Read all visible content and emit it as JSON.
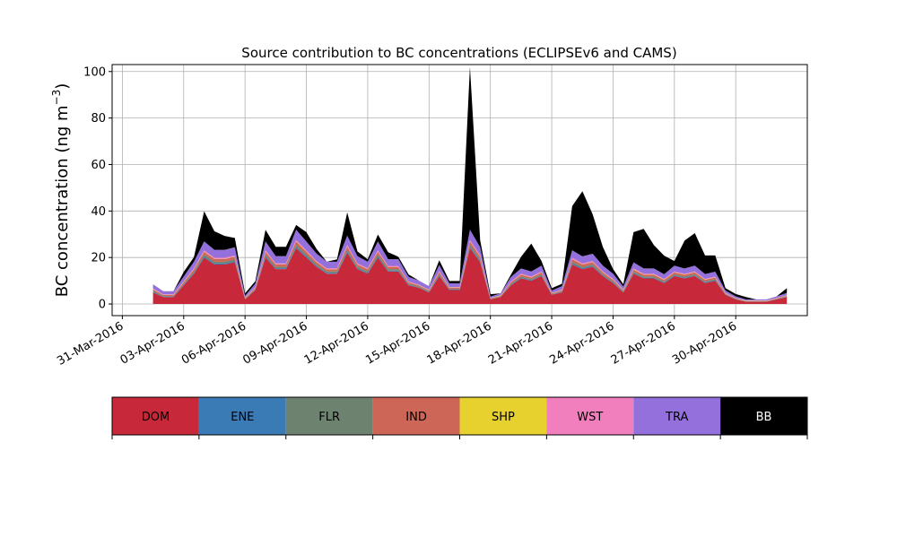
{
  "chart_data": {
    "type": "area",
    "stacked": true,
    "title": "Source contribution to BC concentrations (ECLIPSEv6 and CAMS)",
    "ylabel_prefix": "BC concentration (ng m",
    "ylabel_exp": "−3",
    "ylabel_suffix": ")",
    "xlabel": "",
    "ylim": [
      -5,
      103
    ],
    "xlim": [
      "2016-03-30T12:00",
      "2016-05-03T12:00"
    ],
    "yticks": [
      0,
      20,
      40,
      60,
      80,
      100
    ],
    "yticks_labels": [
      "0",
      "20",
      "40",
      "60",
      "80",
      "100"
    ],
    "xticks": [
      "2016-03-31",
      "2016-04-03",
      "2016-04-06",
      "2016-04-09",
      "2016-04-12",
      "2016-04-15",
      "2016-04-18",
      "2016-04-21",
      "2016-04-24",
      "2016-04-27",
      "2016-04-30"
    ],
    "xtick_labels": [
      "31-Mar-2016",
      "03-Apr-2016",
      "06-Apr-2016",
      "09-Apr-2016",
      "12-Apr-2016",
      "15-Apr-2016",
      "18-Apr-2016",
      "21-Apr-2016",
      "24-Apr-2016",
      "27-Apr-2016",
      "30-Apr-2016"
    ],
    "grid": true,
    "legend_position": "bottom",
    "legend": [
      {
        "name": "DOM",
        "color": "#c7283a",
        "text_color": "#000000"
      },
      {
        "name": "ENE",
        "color": "#3a7bb5",
        "text_color": "#000000"
      },
      {
        "name": "FLR",
        "color": "#6e8270",
        "text_color": "#000000"
      },
      {
        "name": "IND",
        "color": "#cd6657",
        "text_color": "#000000"
      },
      {
        "name": "SHP",
        "color": "#e6d12f",
        "text_color": "#000000"
      },
      {
        "name": "WST",
        "color": "#f27fbd",
        "text_color": "#000000"
      },
      {
        "name": "TRA",
        "color": "#9370db",
        "text_color": "#000000"
      },
      {
        "name": "BB",
        "color": "#000000",
        "text_color": "#ffffff"
      }
    ],
    "x": [
      "2016-04-01T12:00",
      "2016-04-02T00:00",
      "2016-04-02T12:00",
      "2016-04-03T00:00",
      "2016-04-03T12:00",
      "2016-04-04T00:00",
      "2016-04-04T12:00",
      "2016-04-05T00:00",
      "2016-04-05T12:00",
      "2016-04-06T00:00",
      "2016-04-06T12:00",
      "2016-04-07T00:00",
      "2016-04-07T12:00",
      "2016-04-08T00:00",
      "2016-04-08T12:00",
      "2016-04-09T00:00",
      "2016-04-09T12:00",
      "2016-04-10T00:00",
      "2016-04-10T12:00",
      "2016-04-11T00:00",
      "2016-04-11T12:00",
      "2016-04-12T00:00",
      "2016-04-12T12:00",
      "2016-04-13T00:00",
      "2016-04-13T12:00",
      "2016-04-14T00:00",
      "2016-04-14T12:00",
      "2016-04-15T00:00",
      "2016-04-15T12:00",
      "2016-04-16T00:00",
      "2016-04-16T12:00",
      "2016-04-17T00:00",
      "2016-04-17T12:00",
      "2016-04-18T00:00",
      "2016-04-18T12:00",
      "2016-04-19T00:00",
      "2016-04-19T12:00",
      "2016-04-20T00:00",
      "2016-04-20T12:00",
      "2016-04-21T00:00",
      "2016-04-21T12:00",
      "2016-04-22T00:00",
      "2016-04-22T12:00",
      "2016-04-23T00:00",
      "2016-04-23T12:00",
      "2016-04-24T00:00",
      "2016-04-24T12:00",
      "2016-04-25T00:00",
      "2016-04-25T12:00",
      "2016-04-26T00:00",
      "2016-04-26T12:00",
      "2016-04-27T00:00",
      "2016-04-27T12:00",
      "2016-04-28T00:00",
      "2016-04-28T12:00",
      "2016-04-29T00:00",
      "2016-04-29T12:00",
      "2016-04-30T00:00",
      "2016-04-30T12:00",
      "2016-05-01T00:00",
      "2016-05-01T12:00",
      "2016-05-02T00:00",
      "2016-05-02T12:00"
    ],
    "series": [
      {
        "name": "DOM",
        "values": [
          5,
          3,
          3,
          8,
          13,
          20,
          17,
          17,
          18,
          2,
          6,
          20,
          15,
          15,
          24,
          20,
          16,
          13,
          13,
          22,
          15,
          13,
          20,
          14,
          14,
          8,
          7,
          5,
          12,
          6,
          6,
          24,
          18,
          2,
          3,
          8,
          11,
          10,
          12,
          4,
          5,
          17,
          15,
          16,
          12,
          9,
          5,
          13,
          11,
          11,
          9,
          12,
          11,
          12,
          9,
          10,
          4,
          2,
          1,
          1,
          1,
          2,
          3
        ]
      },
      {
        "name": "ENE",
        "values": [
          0.3,
          0.2,
          0.2,
          0.3,
          0.4,
          0.5,
          0.5,
          0.5,
          0.5,
          0.1,
          0.2,
          0.5,
          0.4,
          0.4,
          0.6,
          0.5,
          0.4,
          0.4,
          0.4,
          0.6,
          0.4,
          0.4,
          0.5,
          0.4,
          0.4,
          0.3,
          0.2,
          0.2,
          0.4,
          0.2,
          0.2,
          0.6,
          0.5,
          0.1,
          0.1,
          0.3,
          0.3,
          0.3,
          0.3,
          0.1,
          0.2,
          0.5,
          0.4,
          0.4,
          0.3,
          0.3,
          0.2,
          0.4,
          0.3,
          0.3,
          0.3,
          0.3,
          0.3,
          0.3,
          0.3,
          0.3,
          0.1,
          0.1,
          0.1,
          0.1,
          0.1,
          0.1,
          0.1
        ]
      },
      {
        "name": "FLR",
        "values": [
          0.4,
          0.3,
          0.3,
          0.4,
          0.6,
          0.8,
          0.7,
          0.7,
          0.7,
          0.2,
          0.3,
          0.8,
          0.6,
          0.6,
          0.9,
          0.8,
          0.6,
          0.6,
          0.6,
          0.8,
          0.6,
          0.6,
          0.8,
          0.6,
          0.6,
          0.4,
          0.3,
          0.3,
          0.5,
          0.3,
          0.3,
          0.9,
          0.7,
          0.1,
          0.2,
          0.4,
          0.5,
          0.4,
          0.5,
          0.2,
          0.3,
          0.7,
          0.6,
          0.6,
          0.5,
          0.4,
          0.3,
          0.5,
          0.5,
          0.5,
          0.4,
          0.5,
          0.5,
          0.5,
          0.4,
          0.4,
          0.2,
          0.1,
          0.1,
          0.1,
          0.1,
          0.1,
          0.2
        ]
      },
      {
        "name": "IND",
        "values": [
          0.6,
          0.4,
          0.4,
          0.7,
          0.9,
          1.2,
          1.1,
          1.1,
          1.1,
          0.2,
          0.5,
          1.2,
          1.0,
          1.0,
          1.4,
          1.2,
          1.0,
          0.9,
          0.9,
          1.3,
          1.0,
          0.9,
          1.2,
          0.9,
          0.9,
          0.6,
          0.5,
          0.4,
          0.8,
          0.5,
          0.5,
          1.4,
          1.1,
          0.2,
          0.3,
          0.6,
          0.8,
          0.7,
          0.8,
          0.3,
          0.4,
          1.1,
          1.0,
          1.0,
          0.8,
          0.7,
          0.4,
          0.9,
          0.8,
          0.8,
          0.7,
          0.8,
          0.8,
          0.8,
          0.7,
          0.7,
          0.3,
          0.2,
          0.1,
          0.1,
          0.1,
          0.2,
          0.3
        ]
      },
      {
        "name": "SHP",
        "values": [
          0.1,
          0.1,
          0.1,
          0.1,
          0.1,
          0.1,
          0.1,
          0.1,
          0.1,
          0.1,
          0.1,
          0.1,
          0.1,
          0.1,
          0.1,
          0.1,
          0.1,
          0.1,
          0.1,
          0.1,
          0.1,
          0.1,
          0.1,
          0.1,
          0.1,
          0.1,
          0.1,
          0.1,
          0.1,
          0.1,
          0.1,
          0.1,
          0.1,
          0.1,
          0.1,
          0.1,
          0.1,
          0.1,
          0.1,
          0.1,
          0.1,
          0.1,
          0.1,
          0.1,
          0.1,
          0.1,
          0.1,
          0.1,
          0.1,
          0.1,
          0.1,
          0.1,
          0.1,
          0.1,
          0.1,
          0.1,
          0.1,
          0.1,
          0.1,
          0.1,
          0.1,
          0.1,
          0.1
        ]
      },
      {
        "name": "WST",
        "values": [
          0.3,
          0.2,
          0.2,
          0.3,
          0.4,
          0.5,
          0.5,
          0.5,
          0.5,
          0.1,
          0.2,
          0.5,
          0.4,
          0.4,
          0.6,
          0.5,
          0.4,
          0.4,
          0.4,
          0.6,
          0.4,
          0.4,
          0.5,
          0.4,
          0.4,
          0.3,
          0.2,
          0.2,
          0.4,
          0.2,
          0.2,
          0.6,
          0.5,
          0.1,
          0.1,
          0.3,
          0.3,
          0.3,
          0.3,
          0.1,
          0.2,
          0.5,
          0.4,
          0.4,
          0.3,
          0.3,
          0.2,
          0.4,
          0.3,
          0.3,
          0.3,
          0.3,
          0.3,
          0.3,
          0.3,
          0.3,
          0.1,
          0.1,
          0.1,
          0.1,
          0.1,
          0.1,
          0.1
        ]
      },
      {
        "name": "TRA",
        "values": [
          1.8,
          1.3,
          1.3,
          2.0,
          2.8,
          3.8,
          3.4,
          3.4,
          3.5,
          0.9,
          1.5,
          3.8,
          3.1,
          3.1,
          4.4,
          3.8,
          3.2,
          2.8,
          2.8,
          4.0,
          3.1,
          2.8,
          3.8,
          2.9,
          2.9,
          2.0,
          1.8,
          1.5,
          2.6,
          1.6,
          1.6,
          4.4,
          3.5,
          0.6,
          0.8,
          1.9,
          2.3,
          2.2,
          2.5,
          1.0,
          1.5,
          3.2,
          3.0,
          3.1,
          2.5,
          2.2,
          1.3,
          2.6,
          2.3,
          2.3,
          2.0,
          2.5,
          2.3,
          2.5,
          2.1,
          2.1,
          1.0,
          0.7,
          0.5,
          0.5,
          0.5,
          0.7,
          1.0
        ]
      },
      {
        "name": "BB",
        "values": [
          0,
          0,
          0,
          2,
          2,
          13,
          8,
          6,
          4,
          1,
          1,
          5,
          4,
          4,
          2,
          4,
          2,
          0,
          1,
          10,
          2,
          1,
          3,
          3,
          1,
          1,
          0,
          0,
          2,
          1,
          1,
          70,
          3,
          1,
          0,
          1,
          5,
          12,
          2,
          1,
          1,
          19,
          28,
          17,
          8,
          2,
          1,
          13,
          17,
          10,
          8,
          2,
          12,
          14,
          8,
          7,
          1,
          1,
          1,
          0,
          0,
          0,
          2
        ]
      }
    ]
  }
}
